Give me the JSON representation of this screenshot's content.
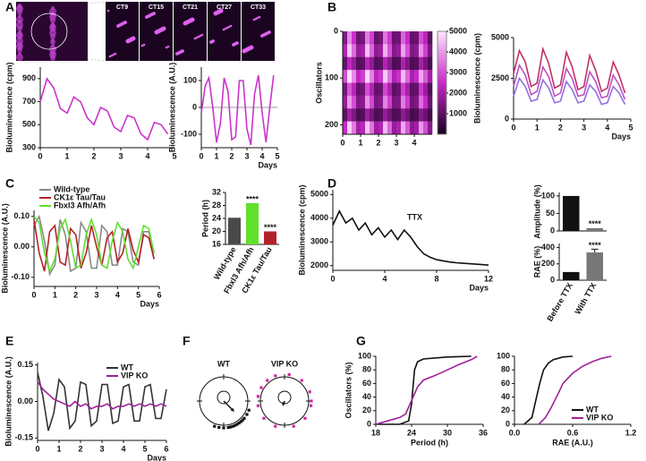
{
  "chart_data": [
    {
      "type": "image",
      "panel": "A",
      "labels": [
        "CT9",
        "CT15",
        "CT21",
        "CT27",
        "CT33"
      ]
    },
    {
      "type": "line",
      "ylabel": "Bioluminescence (cpm)",
      "x": [
        0,
        0.25,
        0.5,
        0.75,
        1,
        1.25,
        1.5,
        1.75,
        2,
        2.25,
        2.5,
        2.75,
        3,
        3.25,
        3.5,
        3.75,
        4,
        4.25,
        4.5,
        4.75
      ],
      "series": [
        {
          "color": "#cc33cc",
          "values": [
            700,
            900,
            820,
            640,
            600,
            740,
            700,
            560,
            500,
            650,
            620,
            480,
            440,
            580,
            560,
            420,
            370,
            520,
            500,
            420
          ]
        }
      ],
      "xlim": [
        0,
        5
      ],
      "xticks": [
        0,
        1,
        2,
        3,
        4,
        5
      ],
      "ylim": [
        300,
        1000
      ],
      "yticks": [
        300,
        500,
        700,
        900
      ]
    },
    {
      "type": "line",
      "ylabel": "Bioluminescence (A.U.)",
      "xlabel": "Days",
      "zeroline": true,
      "x": [
        0,
        0.25,
        0.5,
        0.75,
        1,
        1.25,
        1.5,
        1.75,
        2,
        2.25,
        2.5,
        2.75,
        3,
        3.25,
        3.5,
        3.75,
        4,
        4.25,
        4.5,
        4.75
      ],
      "series": [
        {
          "color": "#cc33cc",
          "values": [
            -20,
            80,
            110,
            0,
            -130,
            -60,
            110,
            60,
            -120,
            -110,
            100,
            100,
            -80,
            -140,
            50,
            120,
            -20,
            -130,
            0,
            120
          ]
        }
      ],
      "xlim": [
        0,
        5
      ],
      "xticks": [
        0,
        1,
        2,
        3,
        4,
        5
      ],
      "ylim": [
        -150,
        150
      ],
      "yticks": [
        -100,
        0,
        100
      ]
    },
    {
      "type": "heatmap",
      "panel": "B",
      "ylabel": "Oscillators",
      "y_inverted": true,
      "xlim": [
        0,
        5
      ],
      "xticks": [
        0,
        1,
        2,
        3,
        4
      ],
      "ylim": [
        0,
        220
      ],
      "yticks": [
        0,
        100,
        200
      ],
      "zlim": [
        0,
        5000
      ],
      "zticks": [
        1000,
        2000,
        3000,
        4000,
        5000
      ],
      "z": [
        [
          1500,
          3800,
          2600,
          1200,
          1400,
          3600,
          2800,
          1100,
          1300,
          3500,
          2700,
          1200,
          1300,
          3300,
          2500,
          1100,
          1200,
          3000,
          2300,
          1000
        ],
        [
          2200,
          4600,
          3400,
          1800,
          2000,
          4500,
          3300,
          1700,
          1900,
          4300,
          3100,
          1600,
          1800,
          4100,
          3000,
          1500,
          1700,
          3900,
          2800,
          1400
        ],
        [
          1100,
          2400,
          1800,
          900,
          1000,
          2300,
          1700,
          900,
          1000,
          2200,
          1600,
          800,
          900,
          2100,
          1500,
          800,
          900,
          2000,
          1400,
          800
        ],
        [
          3000,
          4900,
          3800,
          2400,
          2800,
          4800,
          3700,
          2300,
          2700,
          4600,
          3500,
          2200,
          2600,
          4400,
          3300,
          2100,
          2500,
          4200,
          3200,
          2000
        ],
        [
          1400,
          3100,
          2300,
          1100,
          1300,
          3000,
          2200,
          1100,
          1200,
          2900,
          2100,
          1000,
          1200,
          2800,
          2000,
          1000,
          1100,
          2700,
          1900,
          900
        ],
        [
          1800,
          4000,
          3000,
          1500,
          1700,
          3900,
          2900,
          1400,
          1600,
          3700,
          2800,
          1400,
          1500,
          3600,
          2700,
          1300,
          1500,
          3400,
          2500,
          1200
        ],
        [
          1000,
          2000,
          1500,
          800,
          900,
          1900,
          1400,
          800,
          900,
          1800,
          1300,
          800,
          900,
          1700,
          1300,
          700,
          800,
          1600,
          1200,
          700
        ],
        [
          2500,
          4700,
          3600,
          2000,
          2300,
          4600,
          3500,
          1900,
          2200,
          4400,
          3300,
          1800,
          2100,
          4200,
          3100,
          1700,
          2000,
          4000,
          3000,
          1600
        ]
      ]
    },
    {
      "type": "line",
      "ylabel": "Bioluminescence (cpm)",
      "xlabel": "Days",
      "x": [
        0,
        0.25,
        0.5,
        0.75,
        1,
        1.25,
        1.5,
        1.75,
        2,
        2.25,
        2.5,
        2.75,
        3,
        3.25,
        3.5,
        3.75,
        4,
        4.25,
        4.5,
        4.75
      ],
      "series": [
        {
          "color": "#c0306a",
          "values": [
            2800,
            4200,
            3500,
            2000,
            2200,
            4300,
            3400,
            1900,
            2100,
            4100,
            3200,
            1800,
            2000,
            3900,
            3000,
            1700,
            1900,
            3500,
            2700,
            1600
          ]
        },
        {
          "color": "#c050c0",
          "values": [
            2000,
            3300,
            2700,
            1500,
            1700,
            3200,
            2600,
            1400,
            1600,
            3100,
            2500,
            1400,
            1500,
            2900,
            2300,
            1300,
            1400,
            2700,
            2100,
            1200
          ]
        },
        {
          "color": "#9070e0",
          "values": [
            1400,
            2500,
            2000,
            1100,
            1200,
            2400,
            1900,
            1000,
            1100,
            2300,
            1800,
            1000,
            1100,
            2100,
            1700,
            900,
            1000,
            2000,
            1600,
            900
          ]
        }
      ],
      "xlim": [
        0,
        5
      ],
      "xticks": [
        0,
        1,
        2,
        3,
        4,
        5
      ],
      "ylim": [
        0,
        5000
      ],
      "yticks": [
        0,
        2500,
        5000
      ]
    },
    {
      "type": "line",
      "panel": "C",
      "ylabel": "Bioluminescence (A.U.)",
      "xlabel": "Days",
      "legend": "upper left",
      "x": [
        0,
        0.25,
        0.5,
        0.75,
        1,
        1.25,
        1.5,
        1.75,
        2,
        2.25,
        2.5,
        2.75,
        3,
        3.25,
        3.5,
        3.75,
        4,
        4.25,
        4.5,
        4.75,
        5,
        5.25,
        5.5,
        5.75
      ],
      "series": [
        {
          "name": "Wild-type",
          "color": "#8a8a8a",
          "values": [
            0.07,
            0.1,
            0.02,
            -0.09,
            -0.06,
            0.09,
            0.04,
            -0.08,
            -0.07,
            0.08,
            0.05,
            -0.07,
            -0.07,
            0.07,
            0.05,
            -0.06,
            -0.06,
            0.06,
            0.05,
            -0.05,
            -0.06,
            0.05,
            0.05,
            -0.04
          ]
        },
        {
          "name": "CK1ε Tau/Tau",
          "color": "#b3222a",
          "values": [
            0.09,
            -0.02,
            -0.08,
            0.05,
            0.07,
            -0.05,
            -0.06,
            0.06,
            0.04,
            -0.07,
            -0.02,
            0.07,
            0,
            -0.06,
            0.03,
            0.05,
            -0.05,
            -0.02,
            0.06,
            -0.01,
            -0.05,
            0.04,
            0.03,
            -0.04
          ]
        },
        {
          "name": "Fbxl3 Afh/Afh",
          "color": "#5fe02a",
          "values": [
            0.1,
            0.08,
            -0.02,
            -0.08,
            -0.04,
            0.06,
            0.09,
            0.02,
            -0.07,
            -0.06,
            0.04,
            0.09,
            0.04,
            -0.06,
            -0.07,
            0.02,
            0.08,
            0.05,
            -0.04,
            -0.07,
            0,
            0.07,
            0.06,
            -0.02
          ]
        }
      ],
      "xlim": [
        0,
        6
      ],
      "xticks": [
        0,
        1,
        2,
        3,
        4,
        5,
        6
      ],
      "ylim": [
        -0.13,
        0.12
      ],
      "yticks": [
        {
          "value": -0.1,
          "label": "-0.10"
        },
        {
          "value": 0,
          "label": "0.00"
        },
        {
          "value": 0.1,
          "label": "0.10"
        }
      ]
    },
    {
      "type": "bar",
      "ylabel": "Period (h)",
      "categories": [
        "Wild-type",
        "Fbxl3 Afh/Afh",
        "CK1ε Tau/Tau"
      ],
      "values": [
        24.2,
        28.7,
        20
      ],
      "colors": [
        "#4a4a4a",
        "#5fe02a",
        "#b3222a"
      ],
      "significance": [
        null,
        "****",
        "****"
      ],
      "ylim": [
        16,
        32
      ],
      "yticks": [
        16,
        20,
        24,
        28,
        32
      ]
    },
    {
      "type": "line",
      "panel": "D",
      "ylabel": "Bioluminescence (cpm)",
      "xlabel": "Days",
      "annotations": [
        "TTX"
      ],
      "x": [
        0,
        0.5,
        1,
        1.5,
        2,
        2.5,
        3,
        3.5,
        4,
        4.5,
        5,
        5.5,
        6,
        6.5,
        7,
        7.5,
        8,
        8.5,
        9,
        9.5,
        10,
        10.5,
        11,
        11.5,
        12
      ],
      "series": [
        {
          "color": "#111111",
          "values": [
            3700,
            4300,
            3800,
            4000,
            3500,
            3800,
            3300,
            3600,
            3200,
            3500,
            3100,
            3500,
            3200,
            2800,
            2500,
            2350,
            2250,
            2200,
            2150,
            2120,
            2100,
            2080,
            2060,
            2040,
            2020
          ]
        }
      ],
      "xlim": [
        0,
        12
      ],
      "xticks": [
        0,
        4,
        8,
        12
      ],
      "ylim": [
        1800,
        5200
      ],
      "yticks": [
        2000,
        3000,
        4000,
        5000
      ]
    },
    {
      "type": "bar",
      "ylabel": "Amplitude (%)",
      "values": [
        100,
        8
      ],
      "colors": [
        "#111111",
        "#777777"
      ],
      "significance": [
        null,
        "****"
      ],
      "ylim": [
        0,
        110
      ],
      "yticks": [
        0,
        50,
        100
      ]
    },
    {
      "type": "bar",
      "ylabel": "RAE (%)",
      "categories": [
        "Before TTX",
        "With TTX"
      ],
      "values": [
        100,
        340
      ],
      "errors": [
        0,
        40
      ],
      "colors": [
        "#111111",
        "#777777"
      ],
      "significance": [
        null,
        "****"
      ],
      "ylim": [
        0,
        450
      ],
      "yticks": [
        0,
        200,
        400
      ]
    },
    {
      "type": "line",
      "panel": "E",
      "ylabel": "Bioluminescence (A.U.)",
      "xlabel": "Days",
      "legend": "upper right",
      "x": [
        0,
        0.25,
        0.5,
        0.75,
        1,
        1.25,
        1.5,
        1.75,
        2,
        2.25,
        2.5,
        2.75,
        3,
        3.25,
        3.5,
        3.75,
        4,
        4.25,
        4.5,
        4.75,
        5,
        5.25,
        5.5,
        5.75,
        6
      ],
      "series": [
        {
          "name": "WT",
          "color": "#333333",
          "values": [
            0.12,
            0.02,
            -0.12,
            -0.05,
            0.09,
            0.06,
            -0.11,
            -0.08,
            0.08,
            0.07,
            -0.1,
            -0.08,
            0.07,
            0.07,
            -0.09,
            -0.08,
            0.06,
            0.07,
            -0.08,
            -0.08,
            0.06,
            0.07,
            -0.07,
            -0.07,
            0.05
          ]
        },
        {
          "name": "VIP KO",
          "color": "#a0209a",
          "values": [
            0.08,
            0.05,
            0.03,
            0.01,
            0,
            -0.01,
            -0.02,
            0,
            -0.02,
            -0.01,
            -0.03,
            -0.02,
            -0.02,
            -0.01,
            -0.03,
            -0.02,
            -0.02,
            -0.01,
            -0.02,
            -0.01,
            -0.02,
            -0.01,
            -0.02,
            -0.01,
            -0.02
          ]
        }
      ],
      "xlim": [
        0,
        6
      ],
      "xticks": [
        0,
        1,
        2,
        3,
        4,
        5,
        6
      ],
      "ylim": [
        -0.16,
        0.16
      ],
      "yticks": [
        -0.15,
        {
          "value": 0,
          "label": "0.00"
        },
        0.15
      ]
    },
    {
      "type": "polar",
      "panel": "F",
      "title": "WT",
      "color": "#111111",
      "phases": [
        110,
        120,
        130,
        135,
        140,
        145,
        150,
        155,
        160,
        165,
        170,
        180,
        190,
        200
      ],
      "vector": {
        "angle": 135,
        "length": 0.6
      }
    },
    {
      "type": "polar",
      "title": "VIP KO",
      "color": "#cc2aa0",
      "phases": [
        10,
        40,
        70,
        90,
        100,
        130,
        160,
        200,
        230,
        260,
        280,
        300,
        320,
        340
      ],
      "vector": {
        "angle": 200,
        "length": 0.2
      }
    },
    {
      "type": "line",
      "panel": "G",
      "ylabel": "Oscillators (%)",
      "xlabel": "Period (h)",
      "series": [
        {
          "color": "#111111",
          "x": [
            18,
            22,
            23.5,
            24,
            24.5,
            25,
            26,
            30,
            34
          ],
          "values": [
            0,
            0,
            5,
            30,
            80,
            92,
            96,
            99,
            100
          ]
        },
        {
          "color": "#a0209a",
          "x": [
            18,
            20,
            22,
            23,
            24,
            25,
            26,
            28,
            30,
            32,
            34,
            35
          ],
          "values": [
            0,
            5,
            10,
            15,
            35,
            55,
            65,
            72,
            80,
            88,
            95,
            100
          ]
        }
      ],
      "xlim": [
        18,
        36
      ],
      "xticks": [
        18,
        24,
        30,
        36
      ],
      "ylim": [
        0,
        100
      ],
      "yticks": [
        0,
        20,
        40,
        60,
        80,
        100
      ]
    },
    {
      "type": "line",
      "xlabel": "RAE (A.U.)",
      "legend": "lower right",
      "series": [
        {
          "name": "WT",
          "color": "#111111",
          "x": [
            0.1,
            0.18,
            0.22,
            0.26,
            0.3,
            0.35,
            0.4,
            0.5,
            0.6
          ],
          "values": [
            0,
            10,
            35,
            60,
            80,
            90,
            95,
            99,
            100
          ]
        },
        {
          "name": "VIP KO",
          "color": "#a0209a",
          "x": [
            0.25,
            0.32,
            0.38,
            0.45,
            0.5,
            0.6,
            0.7,
            0.8,
            0.9,
            1
          ],
          "values": [
            0,
            10,
            25,
            45,
            60,
            75,
            85,
            92,
            97,
            100
          ]
        }
      ],
      "xlim": [
        0,
        1.2
      ],
      "xticks": [
        {
          "value": 0,
          "label": "0.0"
        },
        0.6,
        1.2
      ],
      "ylim": [
        0,
        100
      ],
      "yticks": [
        0,
        20,
        40,
        60,
        80,
        100
      ]
    }
  ]
}
